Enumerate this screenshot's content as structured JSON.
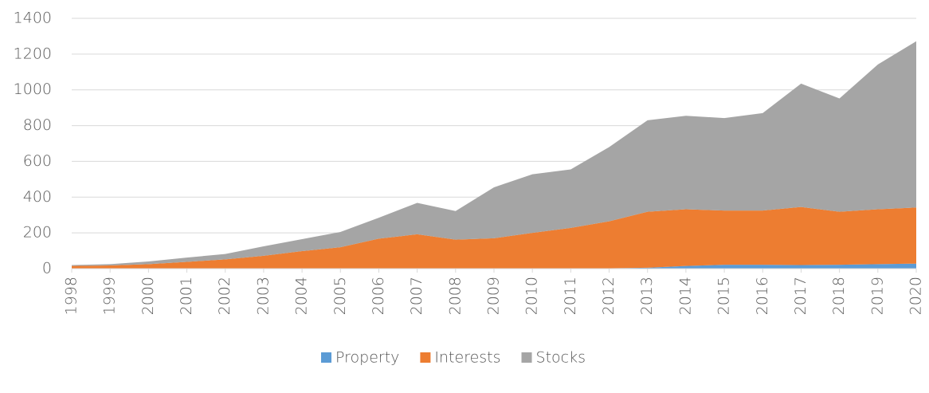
{
  "chart_data": {
    "type": "stacked_area",
    "categories": [
      "1998",
      "1999",
      "2000",
      "2001",
      "2002",
      "2003",
      "2004",
      "2005",
      "2006",
      "2007",
      "2008",
      "2009",
      "2010",
      "2011",
      "2012",
      "2013",
      "2014",
      "2015",
      "2016",
      "2017",
      "2018",
      "2019",
      "2020"
    ],
    "series": [
      {
        "name": "Property",
        "color": "#5b9bd5",
        "values": [
          0,
          0,
          0,
          0,
          0,
          0,
          0,
          0,
          0,
          0,
          0,
          0,
          0,
          0,
          2,
          5,
          15,
          22,
          22,
          20,
          22,
          25,
          28
        ]
      },
      {
        "name": "Interests",
        "color": "#ed7d31",
        "values": [
          15,
          18,
          25,
          38,
          52,
          72,
          98,
          120,
          168,
          192,
          162,
          170,
          200,
          228,
          263,
          313,
          317,
          303,
          303,
          325,
          296,
          307,
          314
        ]
      },
      {
        "name": "Stocks",
        "color": "#a5a5a5",
        "values": [
          5,
          7,
          15,
          24,
          30,
          53,
          67,
          85,
          117,
          176,
          160,
          285,
          328,
          327,
          415,
          512,
          523,
          517,
          545,
          690,
          634,
          810,
          930
        ]
      }
    ],
    "ylim": [
      0,
      1400
    ],
    "yticks": [
      0,
      200,
      400,
      600,
      800,
      1000,
      1200,
      1400
    ],
    "grid": true,
    "legend": "bottom"
  }
}
